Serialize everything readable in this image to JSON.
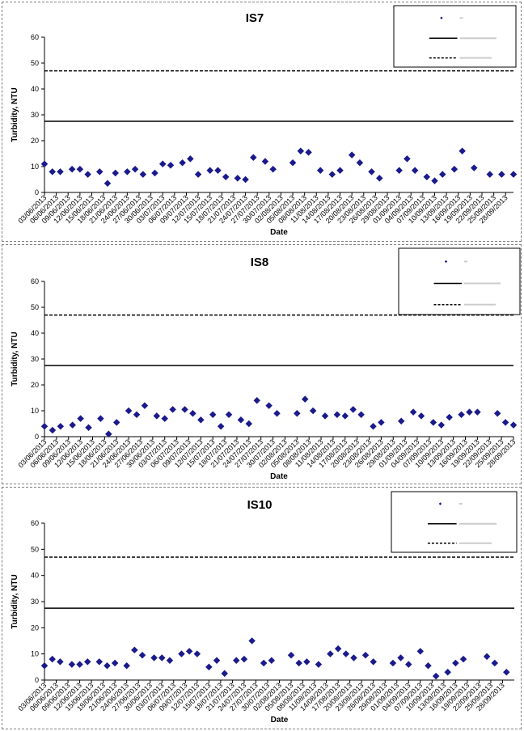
{
  "colors": {
    "marker": "#1a1a8c",
    "line": "#000000",
    "frame": "#808080"
  },
  "chart_data": [
    {
      "type": "scatter",
      "title": "IS7",
      "xlabel": "Date",
      "ylabel": "Turbidity, NTU",
      "ylim": [
        0,
        60
      ],
      "yticks": [
        0,
        10,
        20,
        30,
        40,
        50,
        60
      ],
      "xlim": [
        "2013-06-03",
        "2013-09-30"
      ],
      "xtick_labels": [
        "03/06/2013",
        "06/06/2013",
        "09/06/2013",
        "12/06/2013",
        "15/06/2013",
        "18/06/2013",
        "21/06/2013",
        "24/06/2013",
        "27/06/2013",
        "30/06/2013",
        "03/07/2013",
        "06/07/2013",
        "09/07/2013",
        "12/07/2013",
        "15/07/2013",
        "18/07/2013",
        "21/07/2013",
        "24/07/2013",
        "27/07/2013",
        "30/07/2013",
        "02/08/2013",
        "05/08/2013",
        "08/08/2013",
        "11/08/2013",
        "14/08/2013",
        "17/08/2013",
        "20/08/2013",
        "23/08/2013",
        "26/08/2013",
        "29/08/2013",
        "01/09/2013",
        "04/09/2013",
        "07/09/2013",
        "10/09/2013",
        "13/09/2013",
        "16/09/2013",
        "19/09/2013",
        "22/09/2013",
        "25/09/2013",
        "28/09/2013"
      ],
      "grid": false,
      "legend_position": "top-right",
      "reference_lines": [
        {
          "style": "solid",
          "y": 27.5
        },
        {
          "style": "dashed",
          "y": 47
        }
      ],
      "series": [
        {
          "x": [
            "2013-06-03",
            "2013-06-05",
            "2013-06-07",
            "2013-06-10",
            "2013-06-12",
            "2013-06-14",
            "2013-06-17",
            "2013-06-19",
            "2013-06-21",
            "2013-06-24",
            "2013-06-26",
            "2013-06-28",
            "2013-07-01",
            "2013-07-03",
            "2013-07-05",
            "2013-07-08",
            "2013-07-10",
            "2013-07-12",
            "2013-07-15",
            "2013-07-17",
            "2013-07-19",
            "2013-07-22",
            "2013-07-24",
            "2013-07-26",
            "2013-07-29",
            "2013-07-31",
            "2013-08-05",
            "2013-08-07",
            "2013-08-09",
            "2013-08-12",
            "2013-08-15",
            "2013-08-17",
            "2013-08-20",
            "2013-08-22",
            "2013-08-25",
            "2013-08-27",
            "2013-09-01",
            "2013-09-03",
            "2013-09-05",
            "2013-09-08",
            "2013-09-10",
            "2013-09-12",
            "2013-09-15",
            "2013-09-17",
            "2013-09-20",
            "2013-09-24",
            "2013-09-27",
            "2013-09-30"
          ],
          "y": [
            11,
            8,
            8,
            9,
            9,
            7,
            8,
            3.5,
            7.5,
            8,
            9,
            7,
            7.5,
            11,
            10.5,
            11.5,
            13,
            7,
            8.5,
            8.5,
            6,
            5.5,
            5,
            13.5,
            12,
            9,
            11.5,
            16,
            15.5,
            8.5,
            7,
            8.5,
            14.5,
            11.5,
            8,
            5.5,
            8.5,
            13,
            8.5,
            6,
            4.5,
            7,
            9,
            16,
            9.5,
            7,
            7,
            7
          ]
        }
      ]
    },
    {
      "type": "scatter",
      "title": "IS8",
      "xlabel": "Date",
      "ylabel": "Turbidity, NTU",
      "ylim": [
        0,
        60
      ],
      "yticks": [
        0,
        10,
        20,
        30,
        40,
        50,
        60
      ],
      "xlim": [
        "2013-06-03",
        "2013-09-28"
      ],
      "xtick_labels": [
        "03/06/2013",
        "06/06/2013",
        "09/06/2013",
        "12/06/2013",
        "15/06/2013",
        "18/06/2013",
        "21/06/2013",
        "24/06/2013",
        "27/06/2013",
        "30/06/2013",
        "03/07/2013",
        "06/07/2013",
        "09/07/2013",
        "12/07/2013",
        "15/07/2013",
        "18/07/2013",
        "21/07/2013",
        "24/07/2013",
        "27/07/2013",
        "30/07/2013",
        "02/08/2013",
        "05/08/2013",
        "08/08/2013",
        "11/08/2013",
        "14/08/2013",
        "17/08/2013",
        "20/08/2013",
        "23/08/2013",
        "26/08/2013",
        "29/08/2013",
        "01/09/2013",
        "04/09/2013",
        "07/09/2013",
        "10/09/2013",
        "13/09/2013",
        "16/09/2013",
        "19/09/2013",
        "22/09/2013",
        "25/09/2013",
        "28/09/2013"
      ],
      "grid": false,
      "legend_position": "top-right",
      "reference_lines": [
        {
          "style": "solid",
          "y": 27.5
        },
        {
          "style": "dashed",
          "y": 47
        }
      ],
      "series": [
        {
          "x": [
            "2013-06-03",
            "2013-06-05",
            "2013-06-07",
            "2013-06-10",
            "2013-06-12",
            "2013-06-14",
            "2013-06-17",
            "2013-06-19",
            "2013-06-21",
            "2013-06-24",
            "2013-06-26",
            "2013-06-28",
            "2013-07-01",
            "2013-07-03",
            "2013-07-05",
            "2013-07-08",
            "2013-07-10",
            "2013-07-12",
            "2013-07-15",
            "2013-07-17",
            "2013-07-19",
            "2013-07-22",
            "2013-07-24",
            "2013-07-26",
            "2013-07-29",
            "2013-07-31",
            "2013-08-05",
            "2013-08-07",
            "2013-08-09",
            "2013-08-12",
            "2013-08-15",
            "2013-08-17",
            "2013-08-19",
            "2013-08-21",
            "2013-08-24",
            "2013-08-26",
            "2013-08-31",
            "2013-09-03",
            "2013-09-05",
            "2013-09-08",
            "2013-09-10",
            "2013-09-12",
            "2013-09-15",
            "2013-09-17",
            "2013-09-19",
            "2013-09-24",
            "2013-09-26",
            "2013-09-28"
          ],
          "y": [
            4,
            2.5,
            4,
            4.5,
            7,
            3.5,
            7,
            1,
            5.5,
            10,
            8.5,
            12,
            8,
            7,
            10.5,
            10.5,
            9,
            6.5,
            8.5,
            4,
            8.5,
            6.5,
            5,
            14,
            12,
            9,
            9,
            14.5,
            10,
            8,
            8.5,
            8,
            10.5,
            8.5,
            4,
            5.5,
            6,
            9.5,
            8,
            5.5,
            4.5,
            7.5,
            8.5,
            9.5,
            9.5,
            9,
            5.5,
            4.5
          ]
        }
      ]
    },
    {
      "type": "scatter",
      "title": "IS10",
      "xlabel": "Date",
      "ylabel": "Turbidity, NTU",
      "ylim": [
        0,
        60
      ],
      "yticks": [
        0,
        10,
        20,
        30,
        40,
        50,
        60
      ],
      "xlim": [
        "2013-06-03",
        "2013-10-01"
      ],
      "xtick_labels": [
        "03/06/2013",
        "06/06/2013",
        "09/06/2013",
        "12/06/2013",
        "15/06/2013",
        "18/06/2013",
        "21/06/2013",
        "24/06/2013",
        "27/06/2013",
        "30/06/2013",
        "03/07/2013",
        "06/07/2013",
        "09/07/2013",
        "12/07/2013",
        "15/07/2013",
        "18/07/2013",
        "21/07/2013",
        "24/07/2013",
        "27/07/2013",
        "30/07/2013",
        "02/08/2013",
        "05/08/2013",
        "08/08/2013",
        "11/08/2013",
        "14/08/2013",
        "17/08/2013",
        "20/08/2013",
        "23/08/2013",
        "26/08/2013",
        "29/08/2013",
        "01/09/2013",
        "04/09/2013",
        "07/09/2013",
        "10/09/2013",
        "13/09/2013",
        "16/09/2013",
        "19/09/2013",
        "22/09/2013",
        "25/09/2013",
        "28/09/2013"
      ],
      "grid": false,
      "legend_position": "top-right",
      "reference_lines": [
        {
          "style": "solid",
          "y": 27.5
        },
        {
          "style": "dashed",
          "y": 47
        }
      ],
      "series": [
        {
          "x": [
            "2013-06-03",
            "2013-06-05",
            "2013-06-07",
            "2013-06-10",
            "2013-06-12",
            "2013-06-14",
            "2013-06-17",
            "2013-06-19",
            "2013-06-21",
            "2013-06-24",
            "2013-06-26",
            "2013-06-28",
            "2013-07-01",
            "2013-07-03",
            "2013-07-05",
            "2013-07-08",
            "2013-07-10",
            "2013-07-12",
            "2013-07-15",
            "2013-07-17",
            "2013-07-19",
            "2013-07-22",
            "2013-07-24",
            "2013-07-26",
            "2013-07-29",
            "2013-07-31",
            "2013-08-05",
            "2013-08-07",
            "2013-08-09",
            "2013-08-12",
            "2013-08-15",
            "2013-08-17",
            "2013-08-19",
            "2013-08-21",
            "2013-08-24",
            "2013-08-26",
            "2013-08-31",
            "2013-09-02",
            "2013-09-04",
            "2013-09-07",
            "2013-09-09",
            "2013-09-11",
            "2013-09-14",
            "2013-09-16",
            "2013-09-18",
            "2013-09-24",
            "2013-09-26",
            "2013-09-29"
          ],
          "y": [
            5.5,
            8,
            7,
            6,
            6,
            7,
            7,
            5.5,
            6.5,
            5.5,
            11.5,
            9.5,
            8.5,
            8.5,
            7.5,
            10,
            11,
            10,
            5,
            7.5,
            2.5,
            7.5,
            8,
            15,
            6.5,
            7.5,
            9.5,
            6.5,
            7,
            6,
            10,
            12,
            10,
            8.5,
            9.5,
            7,
            6.5,
            8.5,
            6,
            11,
            5.5,
            1.5,
            3,
            6.5,
            8,
            9,
            6.5,
            3
          ]
        }
      ]
    }
  ]
}
